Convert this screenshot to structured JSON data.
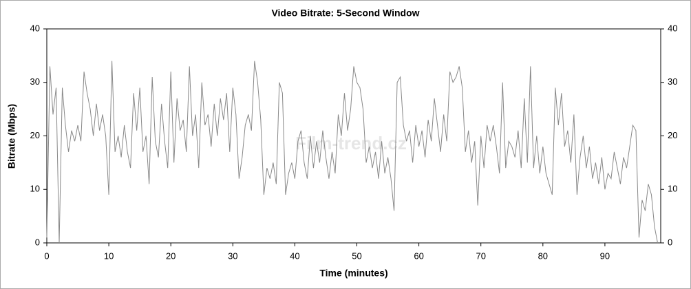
{
  "chart_data": {
    "type": "line",
    "title": "Video Bitrate: 5-Second Window",
    "x_label": "Time (minutes)",
    "y_label": "Bitrate (Mbps)",
    "watermark": "Film-trend.cz",
    "xlim": [
      0,
      99
    ],
    "xticks": [
      0,
      10,
      20,
      30,
      40,
      50,
      60,
      70,
      80,
      90
    ],
    "ylim": [
      0,
      40
    ],
    "yticks": [
      0,
      10,
      20,
      30,
      40
    ],
    "y2lim": [
      0,
      40
    ],
    "y2ticks": [
      0,
      10,
      20,
      30,
      40
    ],
    "grid": false,
    "x": [
      0,
      0.5,
      1,
      1.5,
      2,
      2.5,
      3,
      3.5,
      4,
      4.5,
      5,
      5.5,
      6,
      6.5,
      7,
      7.5,
      8,
      8.5,
      9,
      9.5,
      10,
      10.5,
      11,
      11.5,
      12,
      12.5,
      13,
      13.5,
      14,
      14.5,
      15,
      15.5,
      16,
      16.5,
      17,
      17.5,
      18,
      18.5,
      19,
      19.5,
      20,
      20.5,
      21,
      21.5,
      22,
      22.5,
      23,
      23.5,
      24,
      24.5,
      25,
      25.5,
      26,
      26.5,
      27,
      27.5,
      28,
      28.5,
      29,
      29.5,
      30,
      30.5,
      31,
      31.5,
      32,
      32.5,
      33,
      33.5,
      34,
      34.5,
      35,
      35.5,
      36,
      36.5,
      37,
      37.5,
      38,
      38.5,
      39,
      39.5,
      40,
      40.5,
      41,
      41.5,
      42,
      42.5,
      43,
      43.5,
      44,
      44.5,
      45,
      45.5,
      46,
      46.5,
      47,
      47.5,
      48,
      48.5,
      49,
      49.5,
      50,
      50.5,
      51,
      51.5,
      52,
      52.5,
      53,
      53.5,
      54,
      54.5,
      55,
      55.5,
      56,
      56.5,
      57,
      57.5,
      58,
      58.5,
      59,
      59.5,
      60,
      60.5,
      61,
      61.5,
      62,
      62.5,
      63,
      63.5,
      64,
      64.5,
      65,
      65.5,
      66,
      66.5,
      67,
      67.5,
      68,
      68.5,
      69,
      69.5,
      70,
      70.5,
      71,
      71.5,
      72,
      72.5,
      73,
      73.5,
      74,
      74.5,
      75,
      75.5,
      76,
      76.5,
      77,
      77.5,
      78,
      78.5,
      79,
      79.5,
      80,
      80.5,
      81,
      81.5,
      82,
      82.5,
      83,
      83.5,
      84,
      84.5,
      85,
      85.5,
      86,
      86.5,
      87,
      87.5,
      88,
      88.5,
      89,
      89.5,
      90,
      90.5,
      91,
      91.5,
      92,
      92.5,
      93,
      93.5,
      94,
      94.5,
      95,
      95.5,
      96,
      96.5,
      97,
      97.5,
      98,
      98.5
    ],
    "series": [
      {
        "name": "Video Bitrate",
        "color": "#888888",
        "values": [
          1,
          33,
          24,
          29,
          0,
          29,
          22,
          17,
          21,
          19,
          22,
          19,
          32,
          28,
          25,
          20,
          26,
          21,
          24,
          20,
          9,
          34,
          17,
          20,
          16,
          22,
          17,
          14,
          28,
          21,
          29,
          17,
          20,
          11,
          31,
          19,
          16,
          26,
          19,
          14,
          32,
          15,
          27,
          21,
          23,
          17,
          33,
          20,
          24,
          14,
          30,
          22,
          24,
          18,
          26,
          20,
          27,
          23,
          28,
          17,
          29,
          24,
          12,
          16,
          22,
          24,
          21,
          34,
          30,
          23,
          9,
          14,
          12,
          15,
          11,
          30,
          28,
          9,
          13,
          15,
          12,
          19,
          21,
          15,
          12,
          20,
          14,
          19,
          15,
          21,
          16,
          12,
          17,
          13,
          24,
          20,
          28,
          21,
          25,
          33,
          30,
          29,
          25,
          15,
          18,
          14,
          17,
          12,
          19,
          13,
          16,
          12,
          6,
          30,
          31,
          22,
          19,
          21,
          15,
          22,
          18,
          21,
          16,
          23,
          19,
          27,
          22,
          17,
          24,
          19,
          32,
          30,
          31,
          33,
          29,
          17,
          21,
          15,
          19,
          7,
          20,
          14,
          22,
          19,
          22,
          18,
          13,
          30,
          14,
          19,
          18,
          16,
          21,
          14,
          27,
          15,
          33,
          14,
          20,
          13,
          18,
          13,
          11,
          9,
          29,
          22,
          28,
          18,
          21,
          15,
          24,
          9,
          16,
          20,
          14,
          18,
          12,
          15,
          11,
          16,
          10,
          13,
          12,
          17,
          14,
          11,
          16,
          14,
          18,
          22,
          21,
          1,
          8,
          6,
          11,
          9,
          3,
          0
        ]
      }
    ]
  }
}
